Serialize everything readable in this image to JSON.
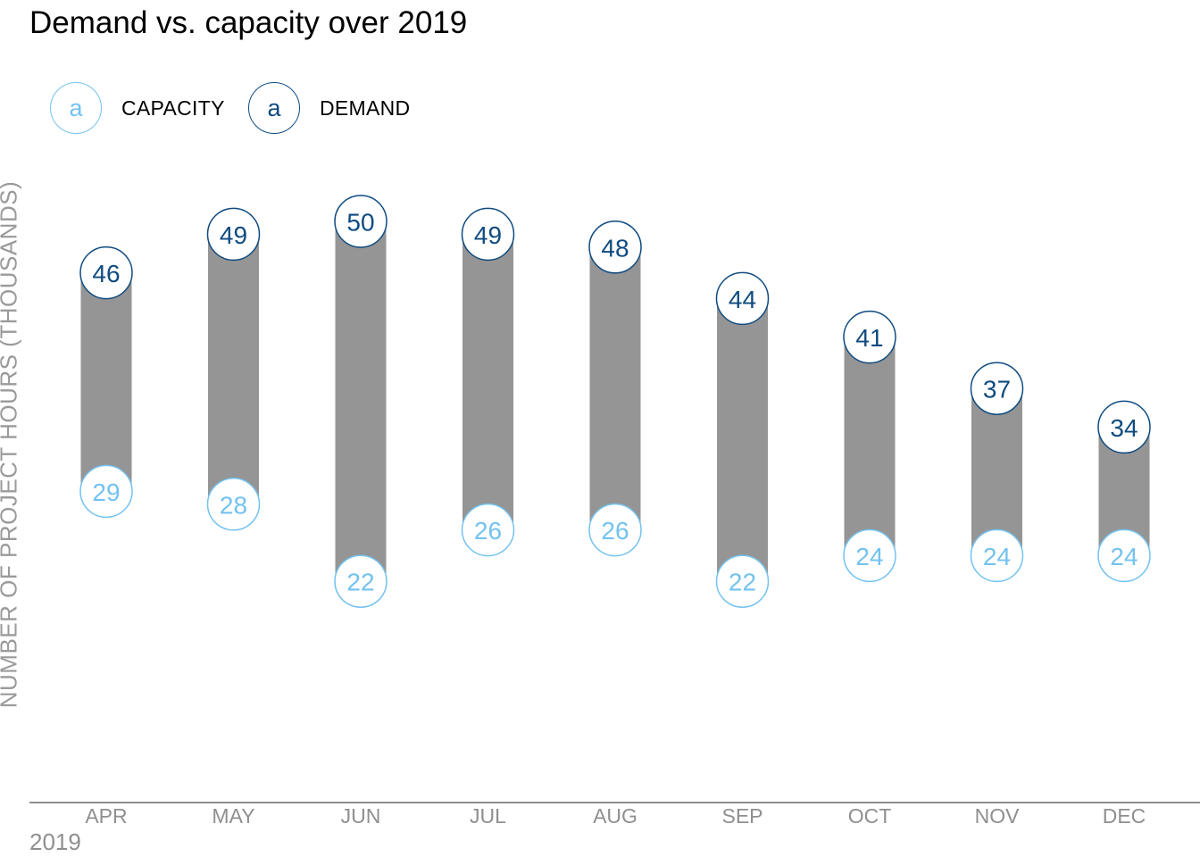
{
  "chart_data": {
    "type": "dumbbell",
    "title": "Demand vs. capacity over 2019",
    "ylabel": "NUMBER OF PROJECT HOURS (THOUSANDS)",
    "xlabel": "2019",
    "categories": [
      "APR",
      "MAY",
      "JUN",
      "JUL",
      "AUG",
      "SEP",
      "OCT",
      "NOV",
      "DEC"
    ],
    "series": [
      {
        "name": "CAPACITY",
        "color": "#73c2f0",
        "values": [
          29,
          28,
          22,
          26,
          26,
          22,
          24,
          24,
          24
        ]
      },
      {
        "name": "DEMAND",
        "color": "#0f4b80",
        "values": [
          46,
          49,
          50,
          49,
          48,
          44,
          41,
          37,
          34
        ]
      }
    ],
    "bar_color": "#959595",
    "axis_color": "#8f8f8f",
    "legend": {
      "position": "top-left",
      "symbol": "a",
      "items": [
        {
          "label": "CAPACITY",
          "color": "#73c2f0"
        },
        {
          "label": "DEMAND",
          "color": "#0f4b80"
        }
      ]
    }
  }
}
